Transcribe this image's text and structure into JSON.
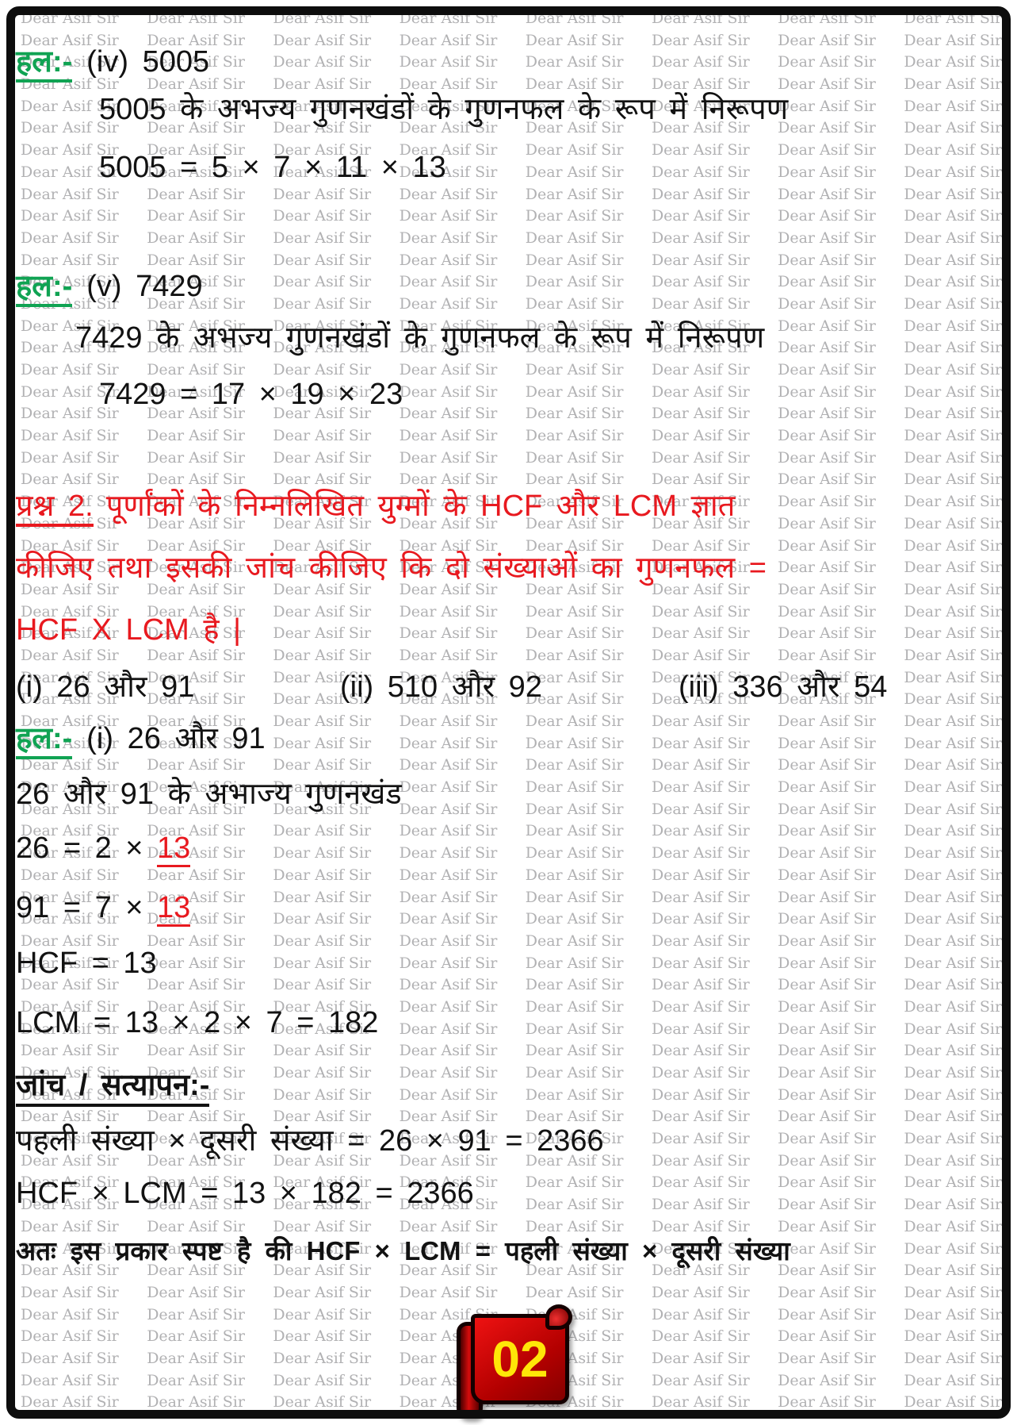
{
  "watermark": {
    "text": "Dear Asif Sir"
  },
  "colors": {
    "green_label": "#10a353",
    "red_text": "#e8191f",
    "banner_red": "#b30000",
    "banner_number_yellow": "#ffe608",
    "watermark_gray": "#b1b1b3"
  },
  "content": {
    "sol_iv_label": "हल:-",
    "sol_iv_text": "(iv) 5005",
    "rep_5005": "5005 के अभज्य गुणनखंडों के गुणनफल के रूप में निरूपण",
    "eq_5005": "5005 = 5 × 7 × 11 × 13",
    "sol_v_label": "हल:-",
    "sol_v_text": "(v) 7429",
    "rep_7429": "7429 के अभज्य गुणनखंडों के गुणनफल के रूप में निरूपण",
    "eq_7429": "7429 = 17 × 19 × 23",
    "q2_label": "प्रश्न 2.",
    "q2_line1": "पूर्णांकों के निम्नलिखित युग्मों के HCF और LCM ज्ञात",
    "q2_line2": "कीजिए तथा इसकी जांच कीजिए कि दो संख्याओं का गुणनफल =",
    "q2_line3": "HCF X LCM है |",
    "opt_i": "(i) 26 और 91",
    "opt_ii": "(ii) 510 और 92",
    "opt_iii": "(iii) 336 और 54",
    "sol_i_label": "हल:-",
    "sol_i_text": "(i) 26 और 91",
    "factors_intro": "26 और 91 के अभाज्य गुणनखंड",
    "eq26_prefix": "26 = 2 × ",
    "eq26_highlight": "13",
    "eq91_prefix": "91 = 7 × ",
    "eq91_highlight": "13",
    "hcf_line": "HCF = 13",
    "lcm_line": "LCM = 13 × 2 × 7 = 182",
    "verify_heading": "जांच / सत्यापन:-",
    "verify_line1": "पहली संख्या × दूसरी संख्या = 26 × 91 = 2366",
    "verify_line2": "HCF × LCM = 13 × 182 = 2366",
    "conclusion": "अतः इस प्रकार स्पष्ट है की HCF × LCM = पहली संख्या × दूसरी संख्या"
  },
  "badge": {
    "page_number": "02"
  }
}
